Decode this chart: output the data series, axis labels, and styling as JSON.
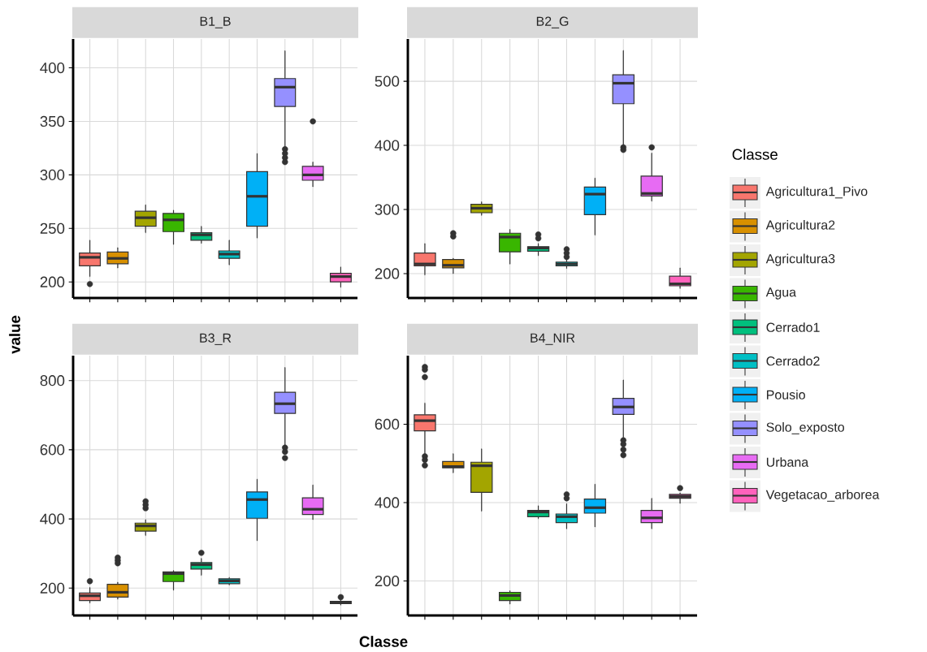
{
  "chart_data": [
    {
      "type": "box",
      "title": "B1_B",
      "categories": [
        null,
        null,
        null,
        null,
        null,
        null,
        null,
        null,
        null,
        null
      ],
      "ylim": [
        185,
        427
      ],
      "yticks": [
        200,
        250,
        300,
        350,
        400
      ],
      "grid": true,
      "tick_labels": "y",
      "legend": "right",
      "legend_title": "Classe",
      "series": [
        {
          "name": "Agricultura1_Pivo",
          "color": "#F8766D",
          "boxes": [
            {
              "low": 205,
              "q1": 215,
              "median": 223,
              "q3": 227,
              "high": 239,
              "outliers": [
                198
              ]
            },
            null,
            null,
            null,
            null,
            null,
            null,
            null,
            null,
            null
          ]
        },
        {
          "name": "Agricultura2",
          "color": "#D89000",
          "boxes": [
            null,
            {
              "low": 213,
              "q1": 217,
              "median": 222,
              "q3": 228,
              "high": 232
            },
            null,
            null,
            null,
            null,
            null,
            null,
            null,
            null
          ]
        },
        {
          "name": "Agricultura3",
          "color": "#A3A500",
          "boxes": [
            null,
            null,
            {
              "low": 246,
              "q1": 252,
              "median": 260,
              "q3": 266,
              "high": 272
            },
            null,
            null,
            null,
            null,
            null,
            null,
            null
          ]
        },
        {
          "name": "Agua",
          "color": "#39B600",
          "boxes": [
            null,
            null,
            null,
            {
              "low": 235,
              "q1": 247,
              "median": 258,
              "q3": 264,
              "high": 267
            },
            null,
            null,
            null,
            null,
            null,
            null
          ]
        },
        {
          "name": "Cerrado1",
          "color": "#00BF7D",
          "boxes": [
            null,
            null,
            null,
            null,
            {
              "low": 236,
              "q1": 239,
              "median": 244,
              "q3": 246,
              "high": 252
            },
            null,
            null,
            null,
            null,
            null
          ]
        },
        {
          "name": "Cerrado2",
          "color": "#00BFC4",
          "boxes": [
            null,
            null,
            null,
            null,
            null,
            {
              "low": 216,
              "q1": 222,
              "median": 226,
              "q3": 229,
              "high": 239
            },
            null,
            null,
            null,
            null
          ]
        },
        {
          "name": "Pousio",
          "color": "#00B0F6",
          "boxes": [
            null,
            null,
            null,
            null,
            null,
            null,
            {
              "low": 241,
              "q1": 252,
              "median": 280,
              "q3": 303,
              "high": 320
            },
            null,
            null,
            null
          ]
        },
        {
          "name": "Solo_exposto",
          "color": "#9590FF",
          "boxes": [
            null,
            null,
            null,
            null,
            null,
            null,
            null,
            {
              "low": 325,
              "q1": 364,
              "median": 382,
              "q3": 390,
              "high": 416,
              "outliers": [
                324,
                320,
                316,
                312
              ]
            },
            null,
            null
          ]
        },
        {
          "name": "Urbana",
          "color": "#E76BF3",
          "boxes": [
            null,
            null,
            null,
            null,
            null,
            null,
            null,
            null,
            {
              "low": 289,
              "q1": 295,
              "median": 300,
              "q3": 308,
              "high": 312,
              "outliers": [
                350
              ]
            },
            null
          ]
        },
        {
          "name": "Vegetacao_arborea",
          "color": "#FF62BC",
          "boxes": [
            null,
            null,
            null,
            null,
            null,
            null,
            null,
            null,
            null,
            {
              "low": 195,
              "q1": 200,
              "median": 205,
              "q3": 208,
              "high": 214
            }
          ]
        }
      ]
    },
    {
      "type": "box",
      "title": "B2_G",
      "categories": [
        null,
        null,
        null,
        null,
        null,
        null,
        null,
        null,
        null,
        null
      ],
      "ylim": [
        162,
        566
      ],
      "yticks": [
        200,
        300,
        400,
        500
      ],
      "grid": true,
      "tick_labels": "y",
      "series": [
        {
          "color": "#F8766D",
          "boxes": [
            {
              "low": 198,
              "q1": 212,
              "median": 215,
              "q3": 232,
              "high": 247
            },
            null,
            null,
            null,
            null,
            null,
            null,
            null,
            null,
            null
          ]
        },
        {
          "color": "#D89000",
          "boxes": [
            null,
            {
              "low": 200,
              "q1": 209,
              "median": 213,
              "q3": 222,
              "high": 224,
              "outliers": [
                263,
                258
              ]
            },
            null,
            null,
            null,
            null,
            null,
            null,
            null,
            null
          ]
        },
        {
          "color": "#A3A500",
          "boxes": [
            null,
            null,
            {
              "low": 291,
              "q1": 295,
              "median": 302,
              "q3": 308,
              "high": 312
            },
            null,
            null,
            null,
            null,
            null,
            null,
            null
          ]
        },
        {
          "color": "#39B600",
          "boxes": [
            null,
            null,
            null,
            {
              "low": 215,
              "q1": 234,
              "median": 257,
              "q3": 263,
              "high": 269
            },
            null,
            null,
            null,
            null,
            null,
            null
          ]
        },
        {
          "color": "#00BF7D",
          "boxes": [
            null,
            null,
            null,
            null,
            {
              "low": 228,
              "q1": 235,
              "median": 240,
              "q3": 242,
              "high": 247,
              "outliers": [
                261,
                255
              ]
            },
            null,
            null,
            null,
            null,
            null
          ]
        },
        {
          "color": "#00BFC4",
          "boxes": [
            null,
            null,
            null,
            null,
            null,
            {
              "low": 208,
              "q1": 212,
              "median": 215,
              "q3": 218,
              "high": 222,
              "outliers": [
                238,
                232,
                226
              ]
            },
            null,
            null,
            null,
            null
          ]
        },
        {
          "color": "#00B0F6",
          "boxes": [
            null,
            null,
            null,
            null,
            null,
            null,
            {
              "low": 260,
              "q1": 292,
              "median": 324,
              "q3": 335,
              "high": 349
            },
            null,
            null,
            null
          ]
        },
        {
          "color": "#9590FF",
          "boxes": [
            null,
            null,
            null,
            null,
            null,
            null,
            null,
            {
              "low": 401,
              "q1": 465,
              "median": 497,
              "q3": 510,
              "high": 548,
              "outliers": [
                397,
                393
              ]
            },
            null,
            null
          ]
        },
        {
          "color": "#E76BF3",
          "boxes": [
            null,
            null,
            null,
            null,
            null,
            null,
            null,
            null,
            {
              "low": 313,
              "q1": 321,
              "median": 325,
              "q3": 352,
              "high": 388,
              "outliers": [
                397
              ]
            },
            null
          ]
        },
        {
          "color": "#FF62BC",
          "boxes": [
            null,
            null,
            null,
            null,
            null,
            null,
            null,
            null,
            null,
            {
              "low": 177,
              "q1": 181,
              "median": 184,
              "q3": 196,
              "high": 209
            }
          ]
        }
      ]
    },
    {
      "type": "box",
      "title": "B3_R",
      "xlabel": "Classe",
      "ylabel": "value",
      "categories": [
        null,
        null,
        null,
        null,
        null,
        null,
        null,
        null,
        null,
        null
      ],
      "ylim": [
        121,
        872
      ],
      "yticks": [
        200,
        400,
        600,
        800
      ],
      "grid": true,
      "tick_labels": "y",
      "series": [
        {
          "color": "#F8766D",
          "boxes": [
            {
              "low": 157,
              "q1": 164,
              "median": 178,
              "q3": 186,
              "high": 202,
              "outliers": [
                220
              ]
            },
            null,
            null,
            null,
            null,
            null,
            null,
            null,
            null,
            null
          ]
        },
        {
          "color": "#D89000",
          "boxes": [
            null,
            {
              "low": 168,
              "q1": 174,
              "median": 188,
              "q3": 211,
              "high": 217,
              "outliers": [
                288,
                280,
                272
              ]
            },
            null,
            null,
            null,
            null,
            null,
            null,
            null,
            null
          ]
        },
        {
          "color": "#A3A500",
          "boxes": [
            null,
            null,
            {
              "low": 352,
              "q1": 365,
              "median": 380,
              "q3": 388,
              "high": 398,
              "outliers": [
                451,
                441,
                431
              ]
            },
            null,
            null,
            null,
            null,
            null,
            null,
            null
          ]
        },
        {
          "color": "#39B600",
          "boxes": [
            null,
            null,
            null,
            {
              "low": 194,
              "q1": 219,
              "median": 242,
              "q3": 247,
              "high": 251
            },
            null,
            null,
            null,
            null,
            null,
            null
          ]
        },
        {
          "color": "#00BF7D",
          "boxes": [
            null,
            null,
            null,
            null,
            {
              "low": 237,
              "q1": 255,
              "median": 268,
              "q3": 274,
              "high": 286,
              "outliers": [
                302
              ]
            },
            null,
            null,
            null,
            null,
            null
          ]
        },
        {
          "color": "#00BFC4",
          "boxes": [
            null,
            null,
            null,
            null,
            null,
            {
              "low": 209,
              "q1": 213,
              "median": 221,
              "q3": 227,
              "high": 231
            },
            null,
            null,
            null,
            null
          ]
        },
        {
          "color": "#00B0F6",
          "boxes": [
            null,
            null,
            null,
            null,
            null,
            null,
            {
              "low": 337,
              "q1": 402,
              "median": 456,
              "q3": 478,
              "high": 515
            },
            null,
            null,
            null
          ]
        },
        {
          "color": "#9590FF",
          "boxes": [
            null,
            null,
            null,
            null,
            null,
            null,
            null,
            {
              "low": 613,
              "q1": 705,
              "median": 733,
              "q3": 766,
              "high": 838,
              "outliers": [
                606,
                594,
                576
              ]
            },
            null,
            null
          ]
        },
        {
          "color": "#E76BF3",
          "boxes": [
            null,
            null,
            null,
            null,
            null,
            null,
            null,
            null,
            {
              "low": 398,
              "q1": 413,
              "median": 428,
              "q3": 461,
              "high": 498
            },
            null
          ]
        },
        {
          "color": "#FF62BC",
          "boxes": [
            null,
            null,
            null,
            null,
            null,
            null,
            null,
            null,
            null,
            {
              "low": 151,
              "q1": 155,
              "median": 158,
              "q3": 162,
              "high": 166,
              "outliers": [
                174
              ]
            }
          ]
        }
      ]
    },
    {
      "type": "box",
      "title": "B4_NIR",
      "categories": [
        null,
        null,
        null,
        null,
        null,
        null,
        null,
        null,
        null,
        null
      ],
      "ylim": [
        112,
        775
      ],
      "yticks": [
        200,
        400,
        600
      ],
      "grid": true,
      "tick_labels": "y",
      "series": [
        {
          "color": "#F8766D",
          "boxes": [
            {
              "low": 521,
              "q1": 583,
              "median": 609,
              "q3": 624,
              "high": 654,
              "outliers": [
                746,
                739,
                720,
                518,
                509,
                495
              ]
            },
            null,
            null,
            null,
            null,
            null,
            null,
            null,
            null,
            null
          ]
        },
        {
          "color": "#D89000",
          "boxes": [
            null,
            {
              "low": 476,
              "q1": 489,
              "median": 492,
              "q3": 505,
              "high": 525
            },
            null,
            null,
            null,
            null,
            null,
            null,
            null,
            null
          ]
        },
        {
          "color": "#A3A500",
          "boxes": [
            null,
            null,
            {
              "low": 378,
              "q1": 426,
              "median": 494,
              "q3": 503,
              "high": 537
            },
            null,
            null,
            null,
            null,
            null,
            null,
            null
          ]
        },
        {
          "color": "#39B600",
          "boxes": [
            null,
            null,
            null,
            {
              "low": 141,
              "q1": 150,
              "median": 163,
              "q3": 171,
              "high": 175
            },
            null,
            null,
            null,
            null,
            null,
            null
          ]
        },
        {
          "color": "#00BF7D",
          "boxes": [
            null,
            null,
            null,
            null,
            {
              "low": 359,
              "q1": 364,
              "median": 376,
              "q3": 380,
              "high": 392
            },
            null,
            null,
            null,
            null,
            null
          ]
        },
        {
          "color": "#00BFC4",
          "boxes": [
            null,
            null,
            null,
            null,
            null,
            {
              "low": 333,
              "q1": 349,
              "median": 364,
              "q3": 371,
              "high": 397,
              "outliers": [
                421,
                411
              ]
            },
            null,
            null,
            null,
            null
          ]
        },
        {
          "color": "#00B0F6",
          "boxes": [
            null,
            null,
            null,
            null,
            null,
            null,
            {
              "low": 338,
              "q1": 373,
              "median": 387,
              "q3": 409,
              "high": 447
            },
            null,
            null,
            null
          ]
        },
        {
          "color": "#9590FF",
          "boxes": [
            null,
            null,
            null,
            null,
            null,
            null,
            null,
            {
              "low": 566,
              "q1": 625,
              "median": 644,
              "q3": 666,
              "high": 713,
              "outliers": [
                559,
                549,
                535,
                521
              ]
            },
            null,
            null
          ]
        },
        {
          "color": "#E76BF3",
          "boxes": [
            null,
            null,
            null,
            null,
            null,
            null,
            null,
            null,
            {
              "low": 333,
              "q1": 349,
              "median": 361,
              "q3": 380,
              "high": 411
            },
            null
          ]
        },
        {
          "color": "#FF62BC",
          "boxes": [
            null,
            null,
            null,
            null,
            null,
            null,
            null,
            null,
            null,
            {
              "low": 398,
              "q1": 411,
              "median": 416,
              "q3": 421,
              "high": 425,
              "outliers": [
                437
              ]
            }
          ]
        }
      ]
    }
  ]
}
